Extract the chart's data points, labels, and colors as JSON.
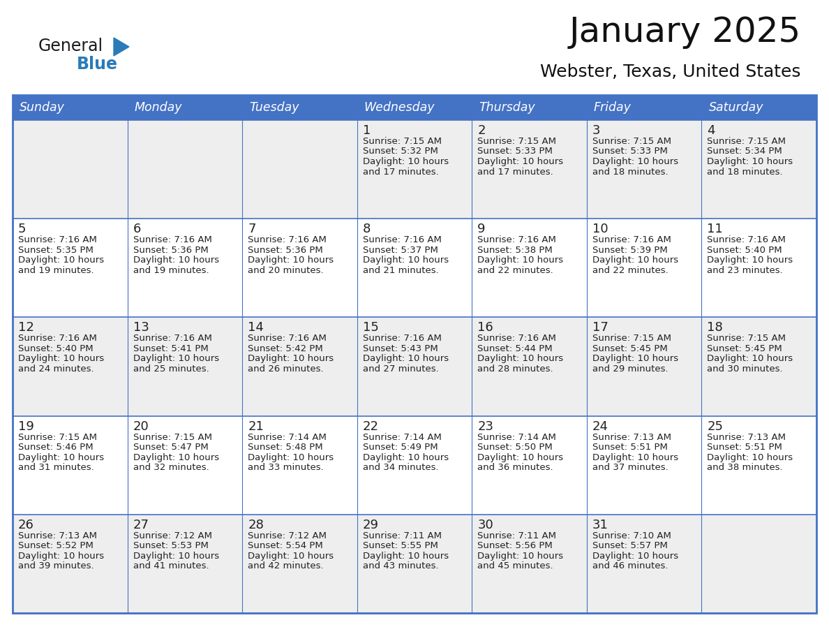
{
  "title": "January 2025",
  "subtitle": "Webster, Texas, United States",
  "header_bg": "#4472C4",
  "header_text": "#FFFFFF",
  "cell_bg_row0": "#EEEEEE",
  "cell_bg_row1": "#FFFFFF",
  "cell_bg_row2": "#EEEEEE",
  "cell_bg_row3": "#FFFFFF",
  "cell_bg_row4": "#EEEEEE",
  "border_color": "#4472C4",
  "text_color": "#222222",
  "day_number_color": "#222222",
  "day_names": [
    "Sunday",
    "Monday",
    "Tuesday",
    "Wednesday",
    "Thursday",
    "Friday",
    "Saturday"
  ],
  "logo_general_color": "#1a1a1a",
  "logo_blue_color": "#2B7BB9",
  "logo_triangle_color": "#2B7BB9",
  "weeks": [
    [
      {
        "day": "",
        "sunrise": "",
        "sunset": "",
        "daylight": ""
      },
      {
        "day": "",
        "sunrise": "",
        "sunset": "",
        "daylight": ""
      },
      {
        "day": "",
        "sunrise": "",
        "sunset": "",
        "daylight": ""
      },
      {
        "day": "1",
        "sunrise": "7:15 AM",
        "sunset": "5:32 PM",
        "daylight": "10 hours\nand 17 minutes."
      },
      {
        "day": "2",
        "sunrise": "7:15 AM",
        "sunset": "5:33 PM",
        "daylight": "10 hours\nand 17 minutes."
      },
      {
        "day": "3",
        "sunrise": "7:15 AM",
        "sunset": "5:33 PM",
        "daylight": "10 hours\nand 18 minutes."
      },
      {
        "day": "4",
        "sunrise": "7:15 AM",
        "sunset": "5:34 PM",
        "daylight": "10 hours\nand 18 minutes."
      }
    ],
    [
      {
        "day": "5",
        "sunrise": "7:16 AM",
        "sunset": "5:35 PM",
        "daylight": "10 hours\nand 19 minutes."
      },
      {
        "day": "6",
        "sunrise": "7:16 AM",
        "sunset": "5:36 PM",
        "daylight": "10 hours\nand 19 minutes."
      },
      {
        "day": "7",
        "sunrise": "7:16 AM",
        "sunset": "5:36 PM",
        "daylight": "10 hours\nand 20 minutes."
      },
      {
        "day": "8",
        "sunrise": "7:16 AM",
        "sunset": "5:37 PM",
        "daylight": "10 hours\nand 21 minutes."
      },
      {
        "day": "9",
        "sunrise": "7:16 AM",
        "sunset": "5:38 PM",
        "daylight": "10 hours\nand 22 minutes."
      },
      {
        "day": "10",
        "sunrise": "7:16 AM",
        "sunset": "5:39 PM",
        "daylight": "10 hours\nand 22 minutes."
      },
      {
        "day": "11",
        "sunrise": "7:16 AM",
        "sunset": "5:40 PM",
        "daylight": "10 hours\nand 23 minutes."
      }
    ],
    [
      {
        "day": "12",
        "sunrise": "7:16 AM",
        "sunset": "5:40 PM",
        "daylight": "10 hours\nand 24 minutes."
      },
      {
        "day": "13",
        "sunrise": "7:16 AM",
        "sunset": "5:41 PM",
        "daylight": "10 hours\nand 25 minutes."
      },
      {
        "day": "14",
        "sunrise": "7:16 AM",
        "sunset": "5:42 PM",
        "daylight": "10 hours\nand 26 minutes."
      },
      {
        "day": "15",
        "sunrise": "7:16 AM",
        "sunset": "5:43 PM",
        "daylight": "10 hours\nand 27 minutes."
      },
      {
        "day": "16",
        "sunrise": "7:16 AM",
        "sunset": "5:44 PM",
        "daylight": "10 hours\nand 28 minutes."
      },
      {
        "day": "17",
        "sunrise": "7:15 AM",
        "sunset": "5:45 PM",
        "daylight": "10 hours\nand 29 minutes."
      },
      {
        "day": "18",
        "sunrise": "7:15 AM",
        "sunset": "5:45 PM",
        "daylight": "10 hours\nand 30 minutes."
      }
    ],
    [
      {
        "day": "19",
        "sunrise": "7:15 AM",
        "sunset": "5:46 PM",
        "daylight": "10 hours\nand 31 minutes."
      },
      {
        "day": "20",
        "sunrise": "7:15 AM",
        "sunset": "5:47 PM",
        "daylight": "10 hours\nand 32 minutes."
      },
      {
        "day": "21",
        "sunrise": "7:14 AM",
        "sunset": "5:48 PM",
        "daylight": "10 hours\nand 33 minutes."
      },
      {
        "day": "22",
        "sunrise": "7:14 AM",
        "sunset": "5:49 PM",
        "daylight": "10 hours\nand 34 minutes."
      },
      {
        "day": "23",
        "sunrise": "7:14 AM",
        "sunset": "5:50 PM",
        "daylight": "10 hours\nand 36 minutes."
      },
      {
        "day": "24",
        "sunrise": "7:13 AM",
        "sunset": "5:51 PM",
        "daylight": "10 hours\nand 37 minutes."
      },
      {
        "day": "25",
        "sunrise": "7:13 AM",
        "sunset": "5:51 PM",
        "daylight": "10 hours\nand 38 minutes."
      }
    ],
    [
      {
        "day": "26",
        "sunrise": "7:13 AM",
        "sunset": "5:52 PM",
        "daylight": "10 hours\nand 39 minutes."
      },
      {
        "day": "27",
        "sunrise": "7:12 AM",
        "sunset": "5:53 PM",
        "daylight": "10 hours\nand 41 minutes."
      },
      {
        "day": "28",
        "sunrise": "7:12 AM",
        "sunset": "5:54 PM",
        "daylight": "10 hours\nand 42 minutes."
      },
      {
        "day": "29",
        "sunrise": "7:11 AM",
        "sunset": "5:55 PM",
        "daylight": "10 hours\nand 43 minutes."
      },
      {
        "day": "30",
        "sunrise": "7:11 AM",
        "sunset": "5:56 PM",
        "daylight": "10 hours\nand 45 minutes."
      },
      {
        "day": "31",
        "sunrise": "7:10 AM",
        "sunset": "5:57 PM",
        "daylight": "10 hours\nand 46 minutes."
      },
      {
        "day": "",
        "sunrise": "",
        "sunset": "",
        "daylight": ""
      }
    ]
  ],
  "row_colors": [
    "#EEEEEE",
    "#FFFFFF",
    "#EEEEEE",
    "#FFFFFF",
    "#EEEEEE"
  ]
}
